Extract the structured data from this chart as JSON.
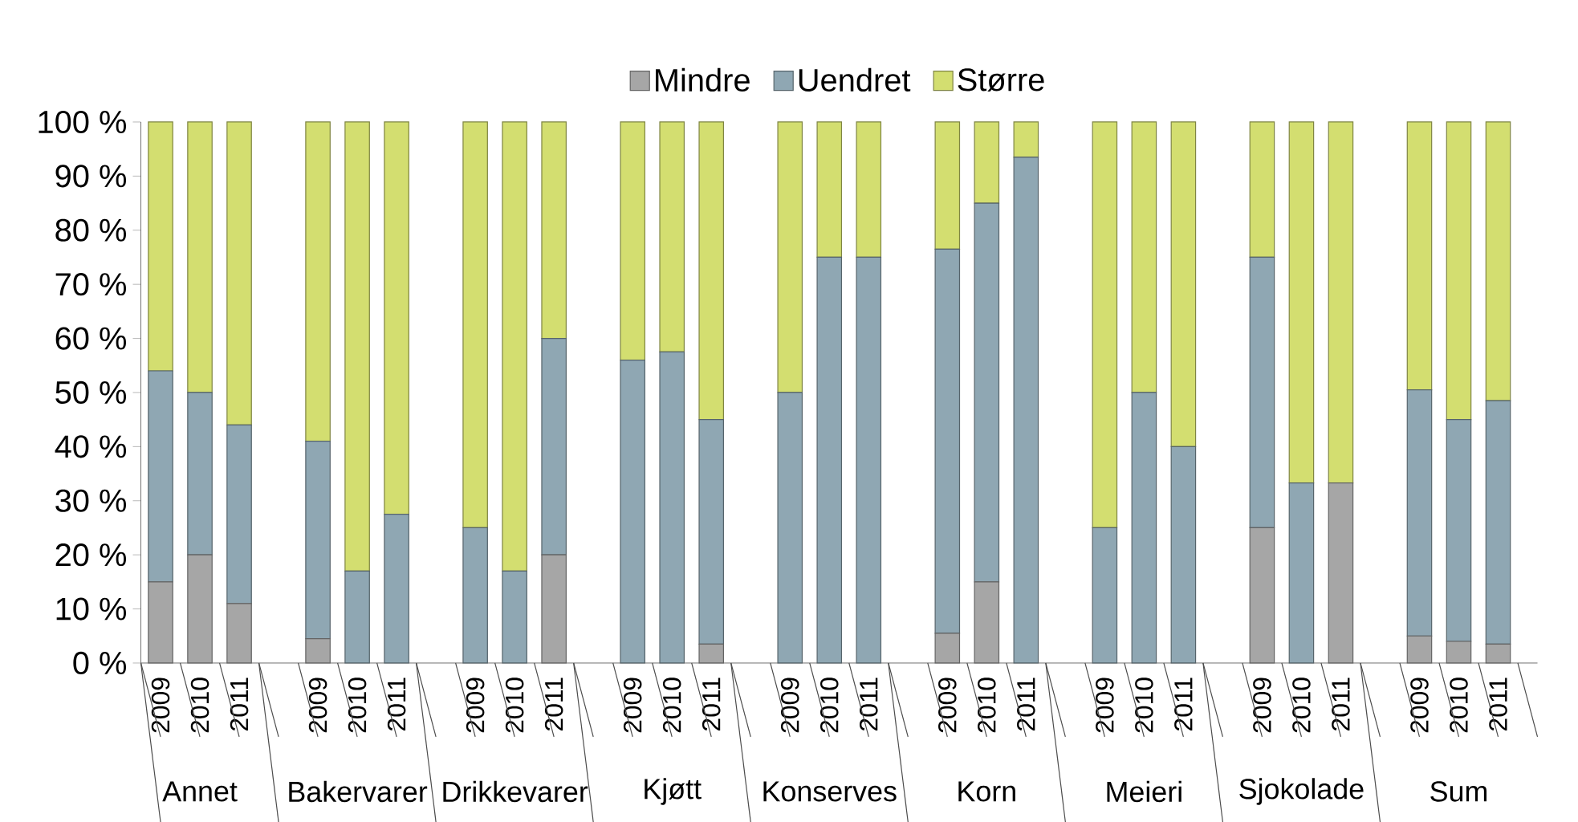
{
  "chart_data": {
    "type": "bar",
    "stacked": true,
    "legend": "top",
    "categories": [
      "2009",
      "2010",
      "2011",
      null,
      "2009",
      "2010",
      "2011",
      null,
      "2009",
      "2010",
      "2011",
      null,
      "2009",
      "2010",
      "2011",
      null,
      "2009",
      "2010",
      "2011",
      null,
      "2009",
      "2010",
      "2011",
      null,
      "2009",
      "2010",
      "2011",
      null,
      "2009",
      "2010",
      "2011",
      null,
      "2009",
      "2010",
      "2011"
    ],
    "series": [
      {
        "name": "Mindre",
        "color": "#a6a6a6",
        "values": [
          15,
          20,
          11,
          null,
          4.5,
          0,
          0,
          null,
          0,
          0,
          20,
          null,
          0,
          0,
          3.5,
          null,
          0,
          0,
          0,
          null,
          5.5,
          15,
          0,
          null,
          0,
          0,
          0,
          null,
          25,
          0,
          33.3,
          null,
          5,
          4,
          3.5
        ]
      },
      {
        "name": "Uendret",
        "color": "#8fa7b3",
        "values": [
          39,
          30,
          33,
          null,
          36.5,
          17,
          27.5,
          null,
          25,
          17,
          40,
          null,
          56,
          57.5,
          41.5,
          null,
          50,
          75,
          75,
          null,
          71,
          70,
          93.5,
          null,
          25,
          50,
          40,
          null,
          50,
          33.3,
          0,
          null,
          45.5,
          41,
          45
        ]
      },
      {
        "name": "Større",
        "color": "#d3de70",
        "values": [
          46,
          50,
          56,
          null,
          59,
          83,
          72.5,
          null,
          75,
          83,
          40,
          null,
          44,
          42.5,
          55,
          null,
          50,
          25,
          25,
          null,
          23.5,
          15,
          6.5,
          null,
          75,
          50,
          60,
          null,
          25,
          66.7,
          66.7,
          null,
          49.5,
          55,
          51.5
        ]
      }
    ],
    "ylim": [
      0,
      100
    ],
    "yticks": [
      {
        "value": 0,
        "label": "0 %"
      },
      {
        "value": 10,
        "label": "10 %"
      },
      {
        "value": 20,
        "label": "20 %"
      },
      {
        "value": 30,
        "label": "30 %"
      },
      {
        "value": 40,
        "label": "40 %"
      },
      {
        "value": 50,
        "label": "50 %"
      },
      {
        "value": 60,
        "label": "60 %"
      },
      {
        "value": 70,
        "label": "70 %"
      },
      {
        "value": 80,
        "label": "80 %"
      },
      {
        "value": 90,
        "label": "90 %"
      },
      {
        "value": 100,
        "label": "100 %"
      }
    ],
    "annotations": [
      "Annet",
      "Bakervarer",
      "Drikkevarer",
      "Kjøtt",
      "Konserves",
      "Korn",
      "Meieri",
      "Sjokolade",
      "Sum"
    ]
  }
}
